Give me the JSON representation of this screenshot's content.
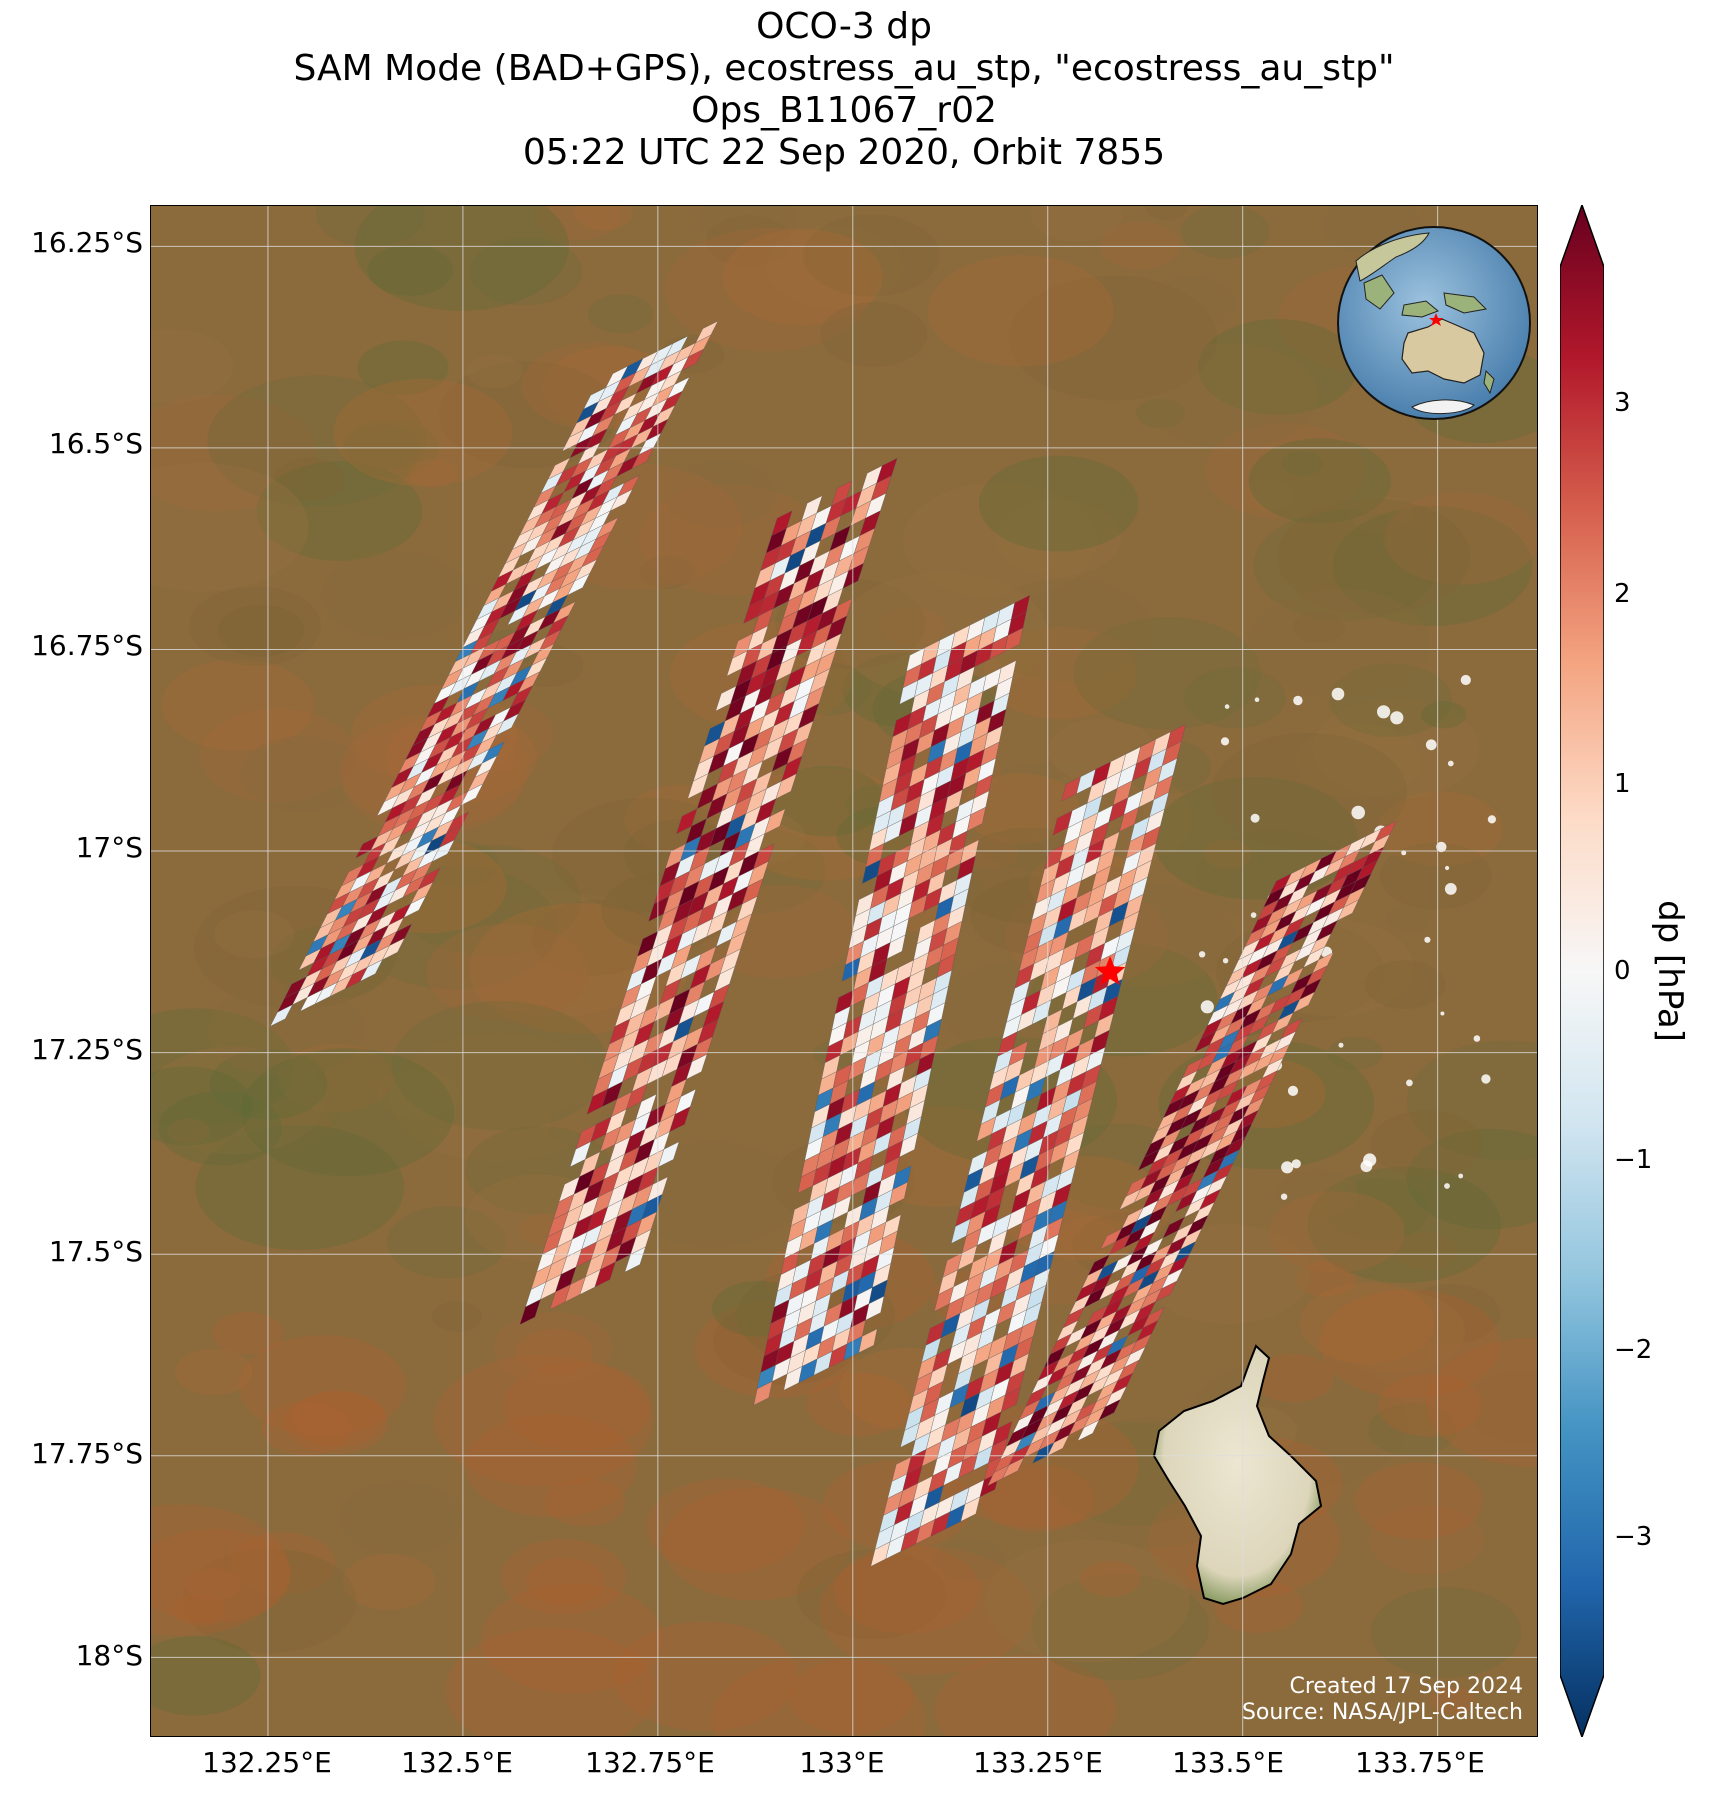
{
  "title": {
    "line1": "OCO-3 dp",
    "line2": "SAM Mode (BAD+GPS), ecostress_au_stp, \"ecostress_au_stp\"",
    "line3": "Ops_B11067_r02",
    "line4": "05:22 UTC 22 Sep 2020, Orbit 7855"
  },
  "axes": {
    "lon_ticks": [
      "132.25°E",
      "132.5°E",
      "132.75°E",
      "133°E",
      "133.25°E",
      "133.5°E",
      "133.75°E"
    ],
    "lat_ticks": [
      "16.25°S",
      "16.5°S",
      "16.75°S",
      "17°S",
      "17.25°S",
      "17.5°S",
      "17.75°S",
      "18°S"
    ],
    "lon_range": [
      132.1,
      133.88
    ],
    "lat_range": [
      -16.2,
      -18.1
    ],
    "grid": true
  },
  "colorbar": {
    "label": "dp [hPa]",
    "ticks": [
      "3",
      "2",
      "1",
      "0",
      "−1",
      "−2",
      "−3"
    ],
    "range": [
      -3.8,
      3.8
    ],
    "colormap": "RdBu_r",
    "colors": [
      "#053061",
      "#2166ac",
      "#4393c3",
      "#92c5de",
      "#d1e5f0",
      "#f7f7f7",
      "#fddbc7",
      "#f4a582",
      "#d6604d",
      "#b2182b",
      "#67001f"
    ],
    "extend": "both"
  },
  "target": {
    "name": "star-marker",
    "lon": 133.33,
    "lat": -17.15,
    "color": "#ff0000"
  },
  "inset": {
    "region": "Australia / Indonesia",
    "marker_color": "#ff0000"
  },
  "credit": {
    "line1": "Created 17 Sep 2024",
    "line2": "Source: NASA/JPL-Caltech"
  },
  "chart_data": {
    "type": "heatmap",
    "variable": "dp",
    "units": "hPa",
    "swaths": [
      {
        "name": "swath-1",
        "start": [
          132.75,
          -16.38
        ],
        "end": [
          132.33,
          -17.18
        ],
        "dp_mean": 1.6
      },
      {
        "name": "swath-2",
        "start": [
          132.98,
          -16.55
        ],
        "end": [
          132.65,
          -17.55
        ],
        "dp_mean": 1.8
      },
      {
        "name": "swath-3",
        "start": [
          133.15,
          -16.72
        ],
        "end": [
          132.95,
          -17.65
        ],
        "dp_mean": 1.4
      },
      {
        "name": "swath-4",
        "start": [
          133.35,
          -16.88
        ],
        "end": [
          133.1,
          -17.85
        ],
        "dp_mean": 1.2
      },
      {
        "name": "swath-5",
        "start": [
          133.62,
          -17.0
        ],
        "end": [
          133.25,
          -17.75
        ],
        "dp_mean": 2.2
      }
    ],
    "dp_range": [
      -3.7,
      3.8
    ]
  }
}
